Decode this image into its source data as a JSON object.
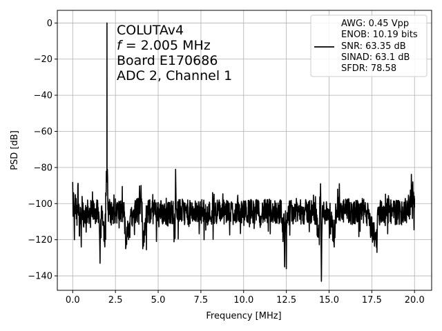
{
  "chart_data": {
    "type": "line",
    "xlabel": "Frequency [MHz]",
    "ylabel": "PSD [dB]",
    "xlim": [
      -0.9,
      21.0
    ],
    "ylim": [
      -148,
      7
    ],
    "xticks": [
      0.0,
      2.5,
      5.0,
      7.5,
      10.0,
      12.5,
      15.0,
      17.5,
      20.0
    ],
    "xtick_labels": [
      "0.0",
      "2.5",
      "5.0",
      "7.5",
      "10.0",
      "12.5",
      "15.0",
      "17.5",
      "20.0"
    ],
    "yticks": [
      0,
      -20,
      -40,
      -60,
      -80,
      -100,
      -120,
      -140
    ],
    "ytick_labels": [
      "0",
      "−20",
      "−40",
      "−60",
      "−80",
      "−100",
      "−120",
      "−140"
    ],
    "grid": true,
    "line_color": "#000000",
    "annotation": {
      "lines": [
        "COLUTAv4",
        "f = 2.005 MHz",
        "Board E170686",
        "ADC 2, Channel 1"
      ],
      "italic_symbol": "f",
      "symbol_rest": " = 2.005 MHz"
    },
    "legend": {
      "placement": "top-right",
      "entries": [
        "AWG: 0.45 Vpp",
        "ENOB: 10.19 bits",
        "SNR: 63.35 dB",
        "SINAD: 63.1 dB",
        "SFDR: 78.58"
      ]
    },
    "series": [
      {
        "noise_floor_db": -104,
        "noise_span_db": 7,
        "points": [
          [
            0.0,
            -88
          ],
          [
            0.02,
            -107
          ],
          [
            0.05,
            -94
          ],
          [
            0.1,
            -120
          ],
          [
            0.15,
            -95
          ],
          [
            0.25,
            -112
          ],
          [
            0.3,
            -90
          ],
          [
            0.4,
            -118
          ],
          [
            0.45,
            -102
          ],
          [
            0.5,
            -124
          ],
          [
            0.55,
            -96
          ],
          [
            0.65,
            -113
          ],
          [
            0.75,
            -108
          ],
          [
            1.0,
            -105
          ],
          [
            1.5,
            -107
          ],
          [
            1.6,
            -133
          ],
          [
            1.7,
            -104
          ],
          [
            1.88,
            -124
          ],
          [
            1.93,
            -94
          ],
          [
            1.97,
            -82
          ],
          [
            2.0,
            -88
          ],
          [
            2.005,
            0
          ],
          [
            2.01,
            -86
          ],
          [
            2.03,
            -81
          ],
          [
            2.06,
            -97
          ],
          [
            2.1,
            -100
          ],
          [
            2.2,
            -108
          ],
          [
            2.5,
            -104
          ],
          [
            3.0,
            -107
          ],
          [
            3.1,
            -125
          ],
          [
            4.0,
            -90
          ],
          [
            4.05,
            -105
          ],
          [
            4.1,
            -125
          ],
          [
            4.4,
            -106
          ],
          [
            5.0,
            -104
          ],
          [
            5.5,
            -110
          ],
          [
            6.0,
            -104
          ],
          [
            6.02,
            -81
          ],
          [
            6.05,
            -102
          ],
          [
            6.5,
            -106
          ],
          [
            7.0,
            -108
          ],
          [
            7.5,
            -104
          ],
          [
            8.0,
            -108
          ],
          [
            8.5,
            -104
          ],
          [
            9.0,
            -107
          ],
          [
            9.5,
            -104
          ],
          [
            10.0,
            -108
          ],
          [
            10.5,
            -104
          ],
          [
            11.0,
            -107
          ],
          [
            11.8,
            -104
          ],
          [
            12.0,
            -107
          ],
          [
            12.2,
            -105
          ],
          [
            12.3,
            -121
          ],
          [
            12.35,
            -106
          ],
          [
            12.4,
            -135
          ],
          [
            12.45,
            -104
          ],
          [
            12.5,
            -136
          ],
          [
            12.55,
            -105
          ],
          [
            12.6,
            -108
          ],
          [
            13.0,
            -104
          ],
          [
            13.5,
            -107
          ],
          [
            14.0,
            -104
          ],
          [
            14.4,
            -118
          ],
          [
            14.5,
            -89
          ],
          [
            14.55,
            -143
          ],
          [
            14.6,
            -108
          ],
          [
            15.0,
            -104
          ],
          [
            15.3,
            -124
          ],
          [
            15.4,
            -107
          ],
          [
            15.5,
            -92
          ],
          [
            15.55,
            -104
          ],
          [
            15.6,
            -89
          ],
          [
            15.65,
            -107
          ],
          [
            16.0,
            -104
          ],
          [
            16.5,
            -107
          ],
          [
            17.0,
            -104
          ],
          [
            17.8,
            -127
          ],
          [
            17.85,
            -106
          ],
          [
            18.5,
            -104
          ],
          [
            19.0,
            -107
          ],
          [
            19.5,
            -104
          ],
          [
            19.9,
            -88
          ],
          [
            20.0,
            -102
          ]
        ]
      }
    ]
  }
}
